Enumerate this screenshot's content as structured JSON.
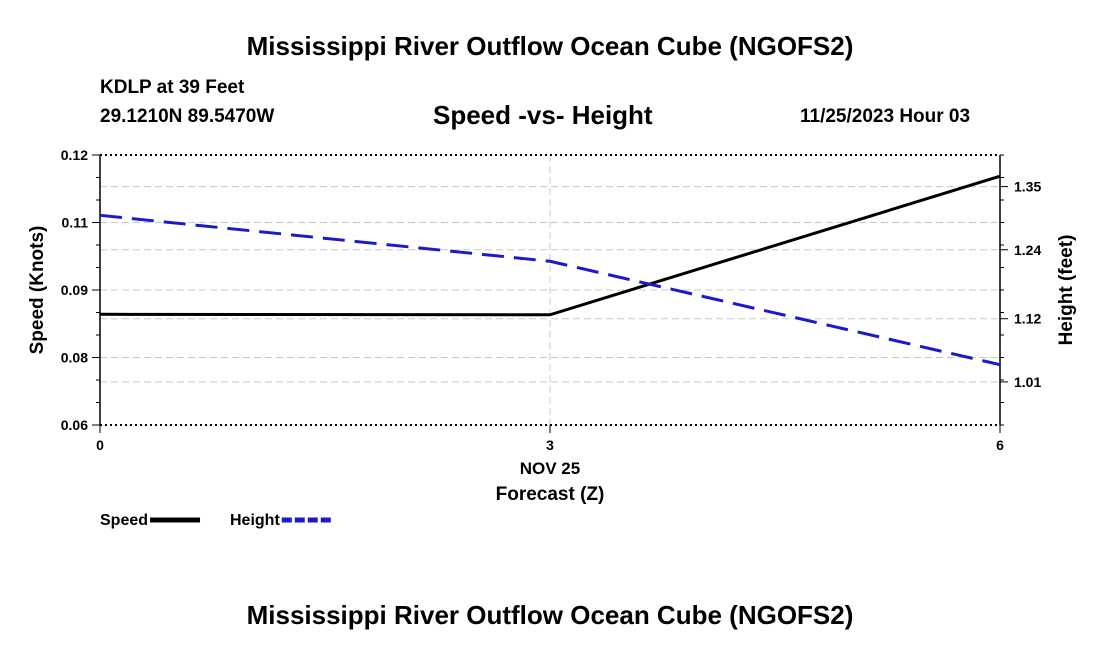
{
  "header": {
    "title": "Mississippi River Outflow Ocean Cube (NGOFS2)",
    "station": "KDLP at 39 Feet",
    "coords": "29.1210N  89.5470W",
    "timestamp": "11/25/2023 Hour 03"
  },
  "footer": {
    "title": "Mississippi River Outflow Ocean Cube (NGOFS2)"
  },
  "chart_data": {
    "type": "line",
    "title": "Speed -vs- Height",
    "xlabel": "Forecast (Z)",
    "xdate": "NOV 25",
    "x": [
      0,
      3,
      6
    ],
    "xlim": [
      0,
      6
    ],
    "xticks": [
      "0",
      "3",
      "6"
    ],
    "ylabel_left": "Speed (Knots)",
    "ylabel_right": "Height (feet)",
    "ylim_left": [
      0.06,
      0.12
    ],
    "ylim_right": [
      0.935,
      1.405
    ],
    "yticks_left": [
      {
        "value": 0.06,
        "label": "0.06"
      },
      {
        "value": 0.075,
        "label": "0.08"
      },
      {
        "value": 0.09,
        "label": "0.09"
      },
      {
        "value": 0.105,
        "label": "0.11"
      },
      {
        "value": 0.12,
        "label": "0.12"
      }
    ],
    "yticks_right": [
      {
        "value": 1.01,
        "label": "1.01"
      },
      {
        "value": 1.12,
        "label": "1.12"
      },
      {
        "value": 1.24,
        "label": "1.24"
      },
      {
        "value": 1.35,
        "label": "1.35"
      }
    ],
    "grid": true,
    "series": [
      {
        "name": "Speed",
        "axis": "left",
        "values": [
          0.0846,
          0.0845,
          0.1153
        ],
        "color": "#000000",
        "dash": "solid"
      },
      {
        "name": "Height",
        "axis": "right",
        "values": [
          1.3,
          1.22,
          1.04
        ],
        "color": "#1a1acc",
        "dash": "dashed"
      }
    ],
    "legend": [
      "Speed",
      "Height"
    ]
  }
}
